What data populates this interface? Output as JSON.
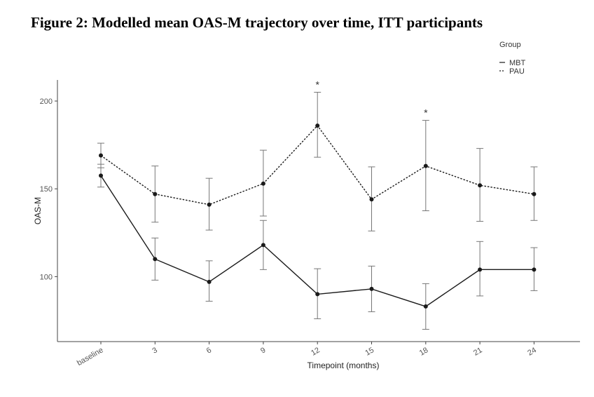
{
  "figure": {
    "title": "Figure 2: Modelled mean OAS-M trajectory over time, ITT participants"
  },
  "chart_data": {
    "type": "line",
    "categories": [
      "baseline",
      "3",
      "6",
      "9",
      "12",
      "15",
      "18",
      "21",
      "24"
    ],
    "xlabel": "Timepoint (months)",
    "ylabel": "OAS-M",
    "ylim": [
      63,
      212
    ],
    "yticks": [
      100,
      150,
      200
    ],
    "grid": false,
    "legend": {
      "title": "Group",
      "placement": "top-right",
      "entries": [
        "MBT",
        "PAU"
      ]
    },
    "series": [
      {
        "name": "MBT",
        "line_style": "solid",
        "values": [
          157.5,
          110,
          97,
          118,
          90,
          93,
          83,
          104,
          104
        ],
        "lower": [
          151,
          98,
          86,
          104,
          76,
          80,
          70,
          89,
          92
        ],
        "upper": [
          164,
          122,
          109,
          132,
          104.5,
          106,
          96,
          120,
          116.5
        ]
      },
      {
        "name": "PAU",
        "line_style": "dotted",
        "values": [
          169,
          147,
          141,
          153,
          186,
          144,
          163,
          152,
          147
        ],
        "lower": [
          162,
          131,
          126.5,
          134.5,
          168,
          126,
          137.5,
          131.5,
          132
        ],
        "upper": [
          176,
          163,
          156,
          172,
          205,
          162.5,
          189,
          173,
          162.5
        ]
      }
    ],
    "annotations": [
      {
        "category": "12",
        "text": "*"
      },
      {
        "category": "18",
        "text": "*"
      }
    ],
    "colors": {
      "line": "#1a1a1a",
      "errorbar": "#777777",
      "axis": "#444444"
    }
  }
}
